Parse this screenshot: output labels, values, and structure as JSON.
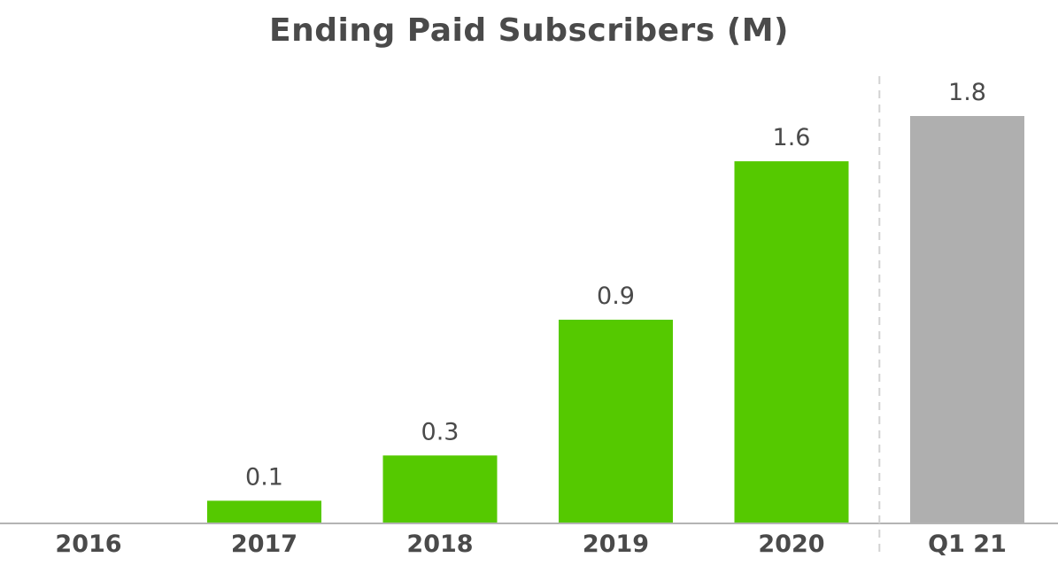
{
  "chart_data": {
    "type": "bar",
    "title": "Ending Paid Subscribers (M)",
    "xlabel": "",
    "ylabel": "",
    "categories": [
      "2016",
      "2017",
      "2018",
      "2019",
      "2020",
      "Q1 21"
    ],
    "values": [
      0,
      0.1,
      0.3,
      0.9,
      1.6,
      1.8
    ],
    "value_labels": [
      "",
      "0.1",
      "0.3",
      "0.9",
      "1.6",
      "1.8"
    ],
    "ylim": [
      0,
      1.8
    ],
    "grid": false,
    "legend": "none",
    "colors": {
      "annual": "#55c900",
      "quarter": "#afafaf",
      "text": "#4a4a4a",
      "axis": "#b4b4b4",
      "separator": "#d2d2d2"
    },
    "bar_color_keys": [
      "annual",
      "annual",
      "annual",
      "annual",
      "annual",
      "quarter"
    ],
    "separator_before_index": 5
  }
}
